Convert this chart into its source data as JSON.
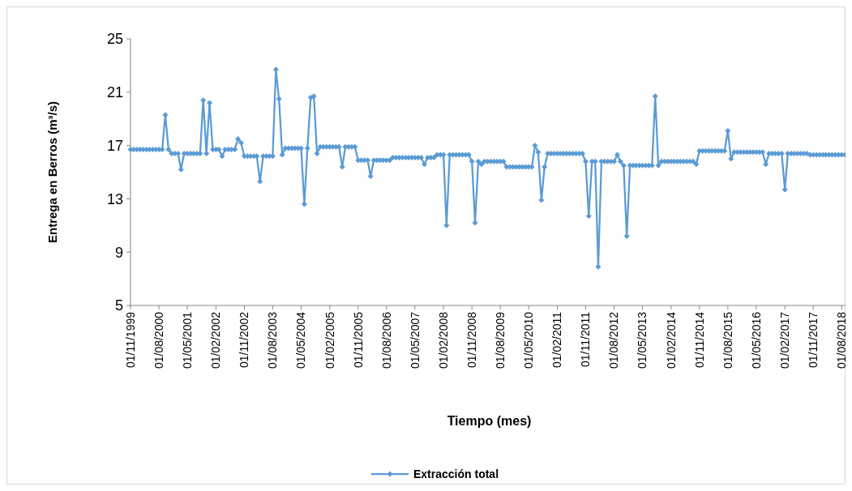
{
  "chart_data": {
    "type": "line",
    "xlabel": "Tiempo (mes)",
    "ylabel": "Entrega en Berros (m³/s)",
    "ylim": [
      5,
      25
    ],
    "yticks": [
      5,
      9,
      13,
      17,
      21,
      25
    ],
    "xlim": [
      "1999-11",
      "2018-10"
    ],
    "xticks": [
      {
        "value": "1999-11",
        "label": "01/11/1999"
      },
      {
        "value": "2000-08",
        "label": "01/08/2000"
      },
      {
        "value": "2001-05",
        "label": "01/05/2001"
      },
      {
        "value": "2002-02",
        "label": "01/02/2002"
      },
      {
        "value": "2002-11",
        "label": "01/11/2002"
      },
      {
        "value": "2003-08",
        "label": "01/08/2003"
      },
      {
        "value": "2004-05",
        "label": "01/05/2004"
      },
      {
        "value": "2005-02",
        "label": "01/02/2005"
      },
      {
        "value": "2005-11",
        "label": "01/11/2005"
      },
      {
        "value": "2006-08",
        "label": "01/08/2006"
      },
      {
        "value": "2007-05",
        "label": "01/05/2007"
      },
      {
        "value": "2008-02",
        "label": "01/02/2008"
      },
      {
        "value": "2008-11",
        "label": "01/11/2008"
      },
      {
        "value": "2009-08",
        "label": "01/08/2009"
      },
      {
        "value": "2010-05",
        "label": "01/05/2010"
      },
      {
        "value": "2011-02",
        "label": "01/02/2011"
      },
      {
        "value": "2011-11",
        "label": "01/11/2011"
      },
      {
        "value": "2012-08",
        "label": "01/08/2012"
      },
      {
        "value": "2013-05",
        "label": "01/05/2013"
      },
      {
        "value": "2014-02",
        "label": "01/02/2014"
      },
      {
        "value": "2014-11",
        "label": "01/11/2014"
      },
      {
        "value": "2015-08",
        "label": "01/08/2015"
      },
      {
        "value": "2016-05",
        "label": "01/05/2016"
      },
      {
        "value": "2017-02",
        "label": "01/02/2017"
      },
      {
        "value": "2017-11",
        "label": "01/11/2017"
      },
      {
        "value": "2018-08",
        "label": "01/08/2018"
      }
    ],
    "x": [
      "1999-11",
      "1999-12",
      "2000-01",
      "2000-02",
      "2000-03",
      "2000-04",
      "2000-05",
      "2000-06",
      "2000-07",
      "2000-08",
      "2000-09",
      "2000-10",
      "2000-11",
      "2000-12",
      "2001-01",
      "2001-02",
      "2001-03",
      "2001-04",
      "2001-05",
      "2001-06",
      "2001-07",
      "2001-08",
      "2001-09",
      "2001-10",
      "2001-11",
      "2001-12",
      "2002-01",
      "2002-02",
      "2002-03",
      "2002-04",
      "2002-05",
      "2002-06",
      "2002-07",
      "2002-08",
      "2002-09",
      "2002-10",
      "2002-11",
      "2002-12",
      "2003-01",
      "2003-02",
      "2003-03",
      "2003-04",
      "2003-05",
      "2003-06",
      "2003-07",
      "2003-08",
      "2003-09",
      "2003-10",
      "2003-11",
      "2003-12",
      "2004-01",
      "2004-02",
      "2004-03",
      "2004-04",
      "2004-05",
      "2004-06",
      "2004-07",
      "2004-08",
      "2004-09",
      "2004-10",
      "2004-11",
      "2004-12",
      "2005-01",
      "2005-02",
      "2005-03",
      "2005-04",
      "2005-05",
      "2005-06",
      "2005-07",
      "2005-08",
      "2005-09",
      "2005-10",
      "2005-11",
      "2005-12",
      "2006-01",
      "2006-02",
      "2006-03",
      "2006-04",
      "2006-05",
      "2006-06",
      "2006-07",
      "2006-08",
      "2006-09",
      "2006-10",
      "2006-11",
      "2006-12",
      "2007-01",
      "2007-02",
      "2007-03",
      "2007-04",
      "2007-05",
      "2007-06",
      "2007-07",
      "2007-08",
      "2007-09",
      "2007-10",
      "2007-11",
      "2007-12",
      "2008-01",
      "2008-02",
      "2008-03",
      "2008-04",
      "2008-05",
      "2008-06",
      "2008-07",
      "2008-08",
      "2008-09",
      "2008-10",
      "2008-11",
      "2008-12",
      "2009-01",
      "2009-02",
      "2009-03",
      "2009-04",
      "2009-05",
      "2009-06",
      "2009-07",
      "2009-08",
      "2009-09",
      "2009-10",
      "2009-11",
      "2009-12",
      "2010-01",
      "2010-02",
      "2010-03",
      "2010-04",
      "2010-05",
      "2010-06",
      "2010-07",
      "2010-08",
      "2010-09",
      "2010-10",
      "2010-11",
      "2010-12",
      "2011-01",
      "2011-02",
      "2011-03",
      "2011-04",
      "2011-05",
      "2011-06",
      "2011-07",
      "2011-08",
      "2011-09",
      "2011-10",
      "2011-11",
      "2011-12",
      "2012-01",
      "2012-02",
      "2012-03",
      "2012-04",
      "2012-05",
      "2012-06",
      "2012-07",
      "2012-08",
      "2012-09",
      "2012-10",
      "2012-11",
      "2012-12",
      "2013-01",
      "2013-02",
      "2013-03",
      "2013-04",
      "2013-05",
      "2013-06",
      "2013-07",
      "2013-08",
      "2013-09",
      "2013-10",
      "2013-11",
      "2013-12",
      "2014-01",
      "2014-02",
      "2014-03",
      "2014-04",
      "2014-05",
      "2014-06",
      "2014-07",
      "2014-08",
      "2014-09",
      "2014-10",
      "2014-11",
      "2014-12",
      "2015-01",
      "2015-02",
      "2015-03",
      "2015-04",
      "2015-05",
      "2015-06",
      "2015-07",
      "2015-08",
      "2015-09",
      "2015-10",
      "2015-11",
      "2015-12",
      "2016-01",
      "2016-02",
      "2016-03",
      "2016-04",
      "2016-05",
      "2016-06",
      "2016-07",
      "2016-08",
      "2016-09",
      "2016-10",
      "2016-11",
      "2016-12",
      "2017-01",
      "2017-02",
      "2017-03",
      "2017-04",
      "2017-05",
      "2017-06",
      "2017-07",
      "2017-08",
      "2017-09",
      "2017-10",
      "2017-11",
      "2017-12",
      "2018-01",
      "2018-02",
      "2018-03",
      "2018-04",
      "2018-05",
      "2018-06",
      "2018-07",
      "2018-08",
      "2018-09",
      "2018-10"
    ],
    "series": [
      {
        "name": "Extracción total",
        "color": "#5b9bd5",
        "values": [
          16.7,
          16.7,
          16.7,
          16.7,
          16.7,
          16.7,
          16.7,
          16.7,
          16.7,
          16.7,
          16.7,
          19.3,
          16.7,
          16.4,
          16.4,
          16.4,
          15.2,
          16.4,
          16.4,
          16.4,
          16.4,
          16.4,
          16.4,
          20.4,
          16.4,
          20.2,
          16.7,
          16.7,
          16.7,
          16.2,
          16.7,
          16.7,
          16.7,
          16.7,
          17.5,
          17.2,
          16.2,
          16.2,
          16.2,
          16.2,
          16.2,
          14.3,
          16.2,
          16.2,
          16.2,
          16.2,
          22.7,
          20.5,
          16.3,
          16.8,
          16.8,
          16.8,
          16.8,
          16.8,
          16.8,
          12.6,
          16.8,
          20.6,
          20.7,
          16.4,
          16.9,
          16.9,
          16.9,
          16.9,
          16.9,
          16.9,
          16.9,
          15.4,
          16.9,
          16.9,
          16.9,
          16.9,
          15.9,
          15.9,
          15.9,
          15.9,
          14.7,
          15.9,
          15.9,
          15.9,
          15.9,
          15.9,
          15.9,
          16.1,
          16.1,
          16.1,
          16.1,
          16.1,
          16.1,
          16.1,
          16.1,
          16.1,
          16.1,
          15.6,
          16.1,
          16.1,
          16.1,
          16.3,
          16.3,
          16.3,
          11.0,
          16.3,
          16.3,
          16.3,
          16.3,
          16.3,
          16.3,
          16.3,
          15.8,
          11.2,
          15.8,
          15.6,
          15.8,
          15.8,
          15.8,
          15.8,
          15.8,
          15.8,
          15.8,
          15.4,
          15.4,
          15.4,
          15.4,
          15.4,
          15.4,
          15.4,
          15.4,
          15.4,
          17.0,
          16.5,
          12.9,
          15.4,
          16.4,
          16.4,
          16.4,
          16.4,
          16.4,
          16.4,
          16.4,
          16.4,
          16.4,
          16.4,
          16.4,
          16.4,
          15.8,
          11.7,
          15.8,
          15.8,
          7.9,
          15.8,
          15.8,
          15.8,
          15.8,
          15.8,
          16.3,
          15.8,
          15.5,
          10.2,
          15.5,
          15.5,
          15.5,
          15.5,
          15.5,
          15.5,
          15.5,
          15.5,
          20.7,
          15.5,
          15.8,
          15.8,
          15.8,
          15.8,
          15.8,
          15.8,
          15.8,
          15.8,
          15.8,
          15.8,
          15.8,
          15.6,
          16.6,
          16.6,
          16.6,
          16.6,
          16.6,
          16.6,
          16.6,
          16.6,
          16.6,
          18.1,
          16.0,
          16.5,
          16.5,
          16.5,
          16.5,
          16.5,
          16.5,
          16.5,
          16.5,
          16.5,
          16.5,
          15.6,
          16.4,
          16.4,
          16.4,
          16.4,
          16.4,
          13.7,
          16.4,
          16.4,
          16.4,
          16.4,
          16.4,
          16.4,
          16.4,
          16.3,
          16.3,
          16.3,
          16.3,
          16.3,
          16.3,
          16.3,
          16.3,
          16.3,
          16.3,
          16.3,
          16.3,
          16.3
        ]
      }
    ],
    "marker": "diamond",
    "legend": "bottom"
  }
}
